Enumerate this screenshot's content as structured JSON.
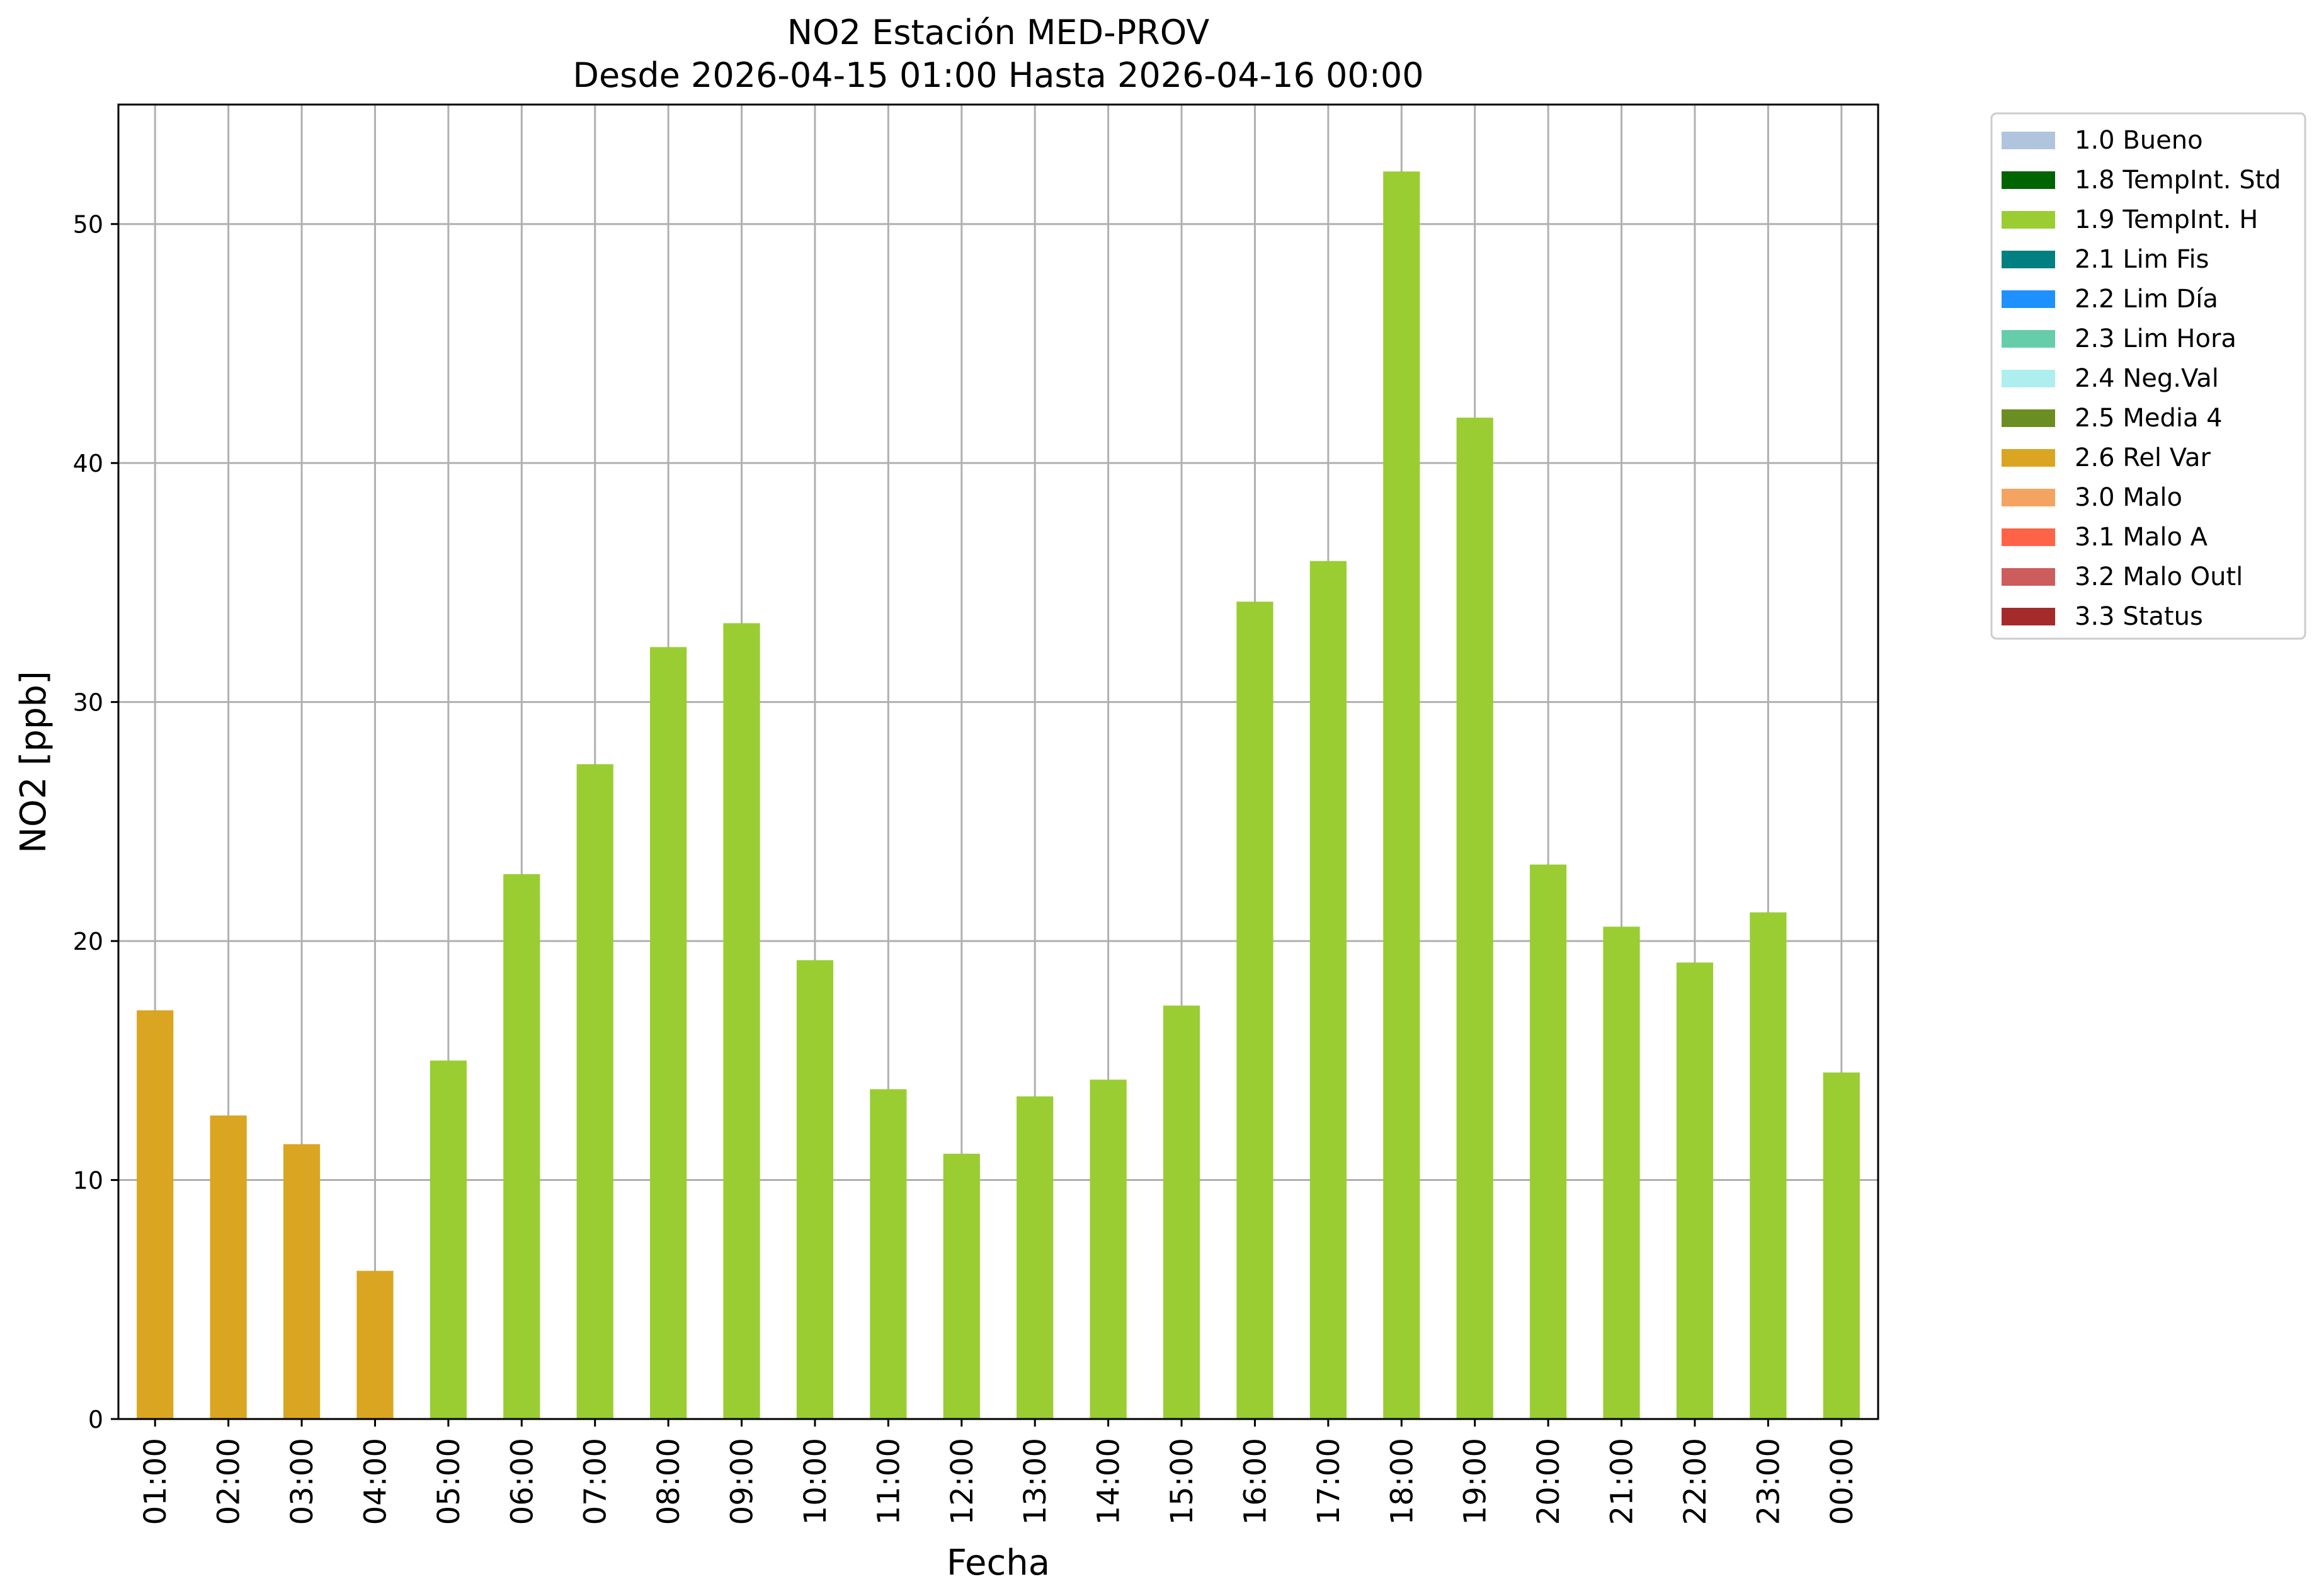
{
  "chart_data": {
    "type": "bar",
    "title": "NO2 Estación MED-PROV",
    "subtitle": "Desde 2026-04-15 01:00 Hasta 2026-04-16 00:00",
    "xlabel": "Fecha",
    "ylabel": "NO2 [ppb]",
    "ylim": [
      0,
      55
    ],
    "yticks": [
      0,
      10,
      20,
      30,
      40,
      50
    ],
    "grid": true,
    "legend_position": "outside-top-right",
    "categories": [
      "01:00",
      "02:00",
      "03:00",
      "04:00",
      "05:00",
      "06:00",
      "07:00",
      "08:00",
      "09:00",
      "10:00",
      "11:00",
      "12:00",
      "13:00",
      "14:00",
      "15:00",
      "16:00",
      "17:00",
      "18:00",
      "19:00",
      "20:00",
      "21:00",
      "22:00",
      "23:00",
      "00:00"
    ],
    "values": [
      17.1,
      12.7,
      11.5,
      6.2,
      15.0,
      22.8,
      27.4,
      32.3,
      33.3,
      19.2,
      13.8,
      11.1,
      13.5,
      14.2,
      17.3,
      34.2,
      35.9,
      52.2,
      41.9,
      23.2,
      20.6,
      19.1,
      21.2,
      14.5
    ],
    "flags": [
      "2.6 Rel Var",
      "2.6 Rel Var",
      "2.6 Rel Var",
      "2.6 Rel Var",
      "1.9 TempInt. H",
      "1.9 TempInt. H",
      "1.9 TempInt. H",
      "1.9 TempInt. H",
      "1.9 TempInt. H",
      "1.9 TempInt. H",
      "1.9 TempInt. H",
      "1.9 TempInt. H",
      "1.9 TempInt. H",
      "1.9 TempInt. H",
      "1.9 TempInt. H",
      "1.9 TempInt. H",
      "1.9 TempInt. H",
      "1.9 TempInt. H",
      "1.9 TempInt. H",
      "1.9 TempInt. H",
      "1.9 TempInt. H",
      "1.9 TempInt. H",
      "1.9 TempInt. H",
      "1.9 TempInt. H"
    ],
    "legend": [
      {
        "label": "1.0 Bueno",
        "color": "#b0c4de"
      },
      {
        "label": "1.8 TempInt. Std",
        "color": "#006400"
      },
      {
        "label": "1.9 TempInt. H",
        "color": "#9acd32"
      },
      {
        "label": "2.1 Lim Fis",
        "color": "#008080"
      },
      {
        "label": "2.2 Lim Día",
        "color": "#1e90ff"
      },
      {
        "label": "2.3 Lim Hora",
        "color": "#66cdaa"
      },
      {
        "label": "2.4 Neg.Val",
        "color": "#afeeee"
      },
      {
        "label": "2.5 Media 4",
        "color": "#6b8e23"
      },
      {
        "label": "2.6 Rel Var",
        "color": "#daa520"
      },
      {
        "label": "3.0 Malo",
        "color": "#f4a460"
      },
      {
        "label": "3.1 Malo A",
        "color": "#ff6347"
      },
      {
        "label": "3.2 Malo Outl",
        "color": "#cd5c5c"
      },
      {
        "label": "3.3 Status",
        "color": "#a52a2a"
      }
    ]
  }
}
